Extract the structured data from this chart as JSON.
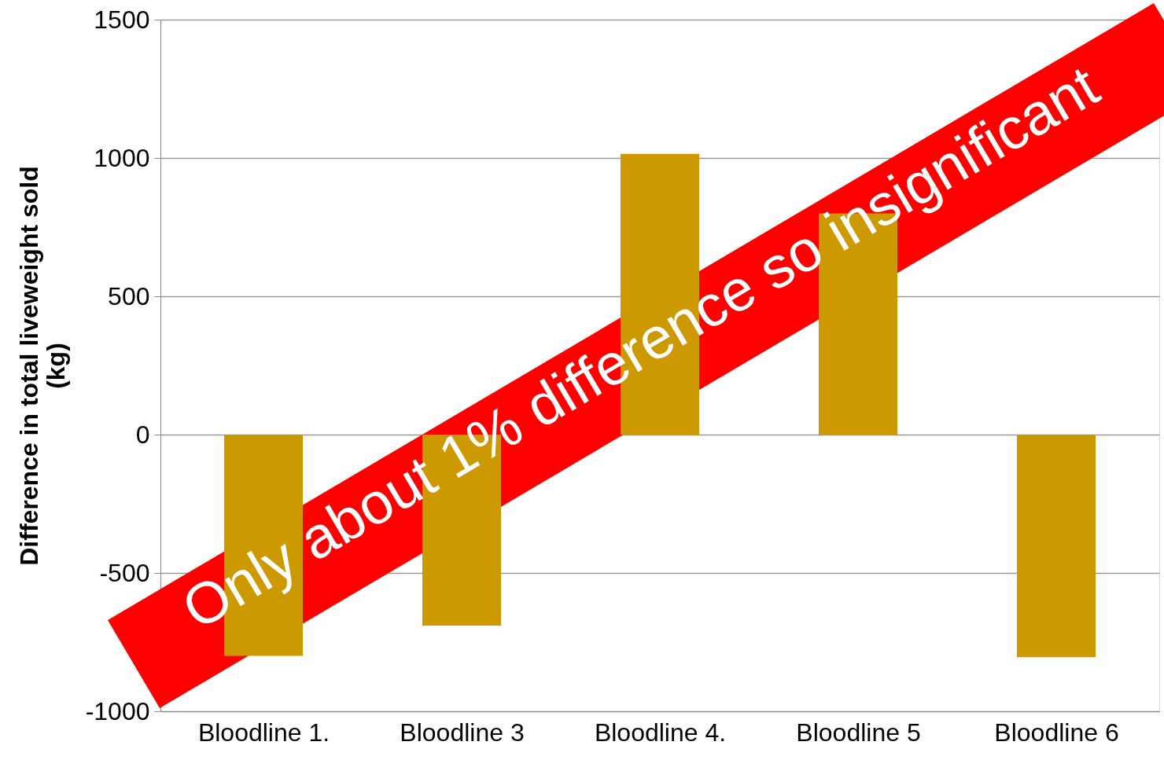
{
  "chart_data": {
    "type": "bar",
    "ylabel": "Difference in total liveweight sold\n(kg)",
    "categories": [
      "Bloodline 1.",
      "Bloodline 3",
      "Bloodline 4.",
      "Bloodline 5",
      "Bloodline 6"
    ],
    "values": [
      -800,
      -690,
      1015,
      800,
      -805
    ],
    "color": "#cc9900",
    "ylim": [
      -1000,
      1500
    ],
    "yticks": [
      -1000,
      -500,
      0,
      500,
      1000,
      1500
    ],
    "grid": "y",
    "annotations": [
      "Only about 1% difference so insignificant"
    ]
  }
}
